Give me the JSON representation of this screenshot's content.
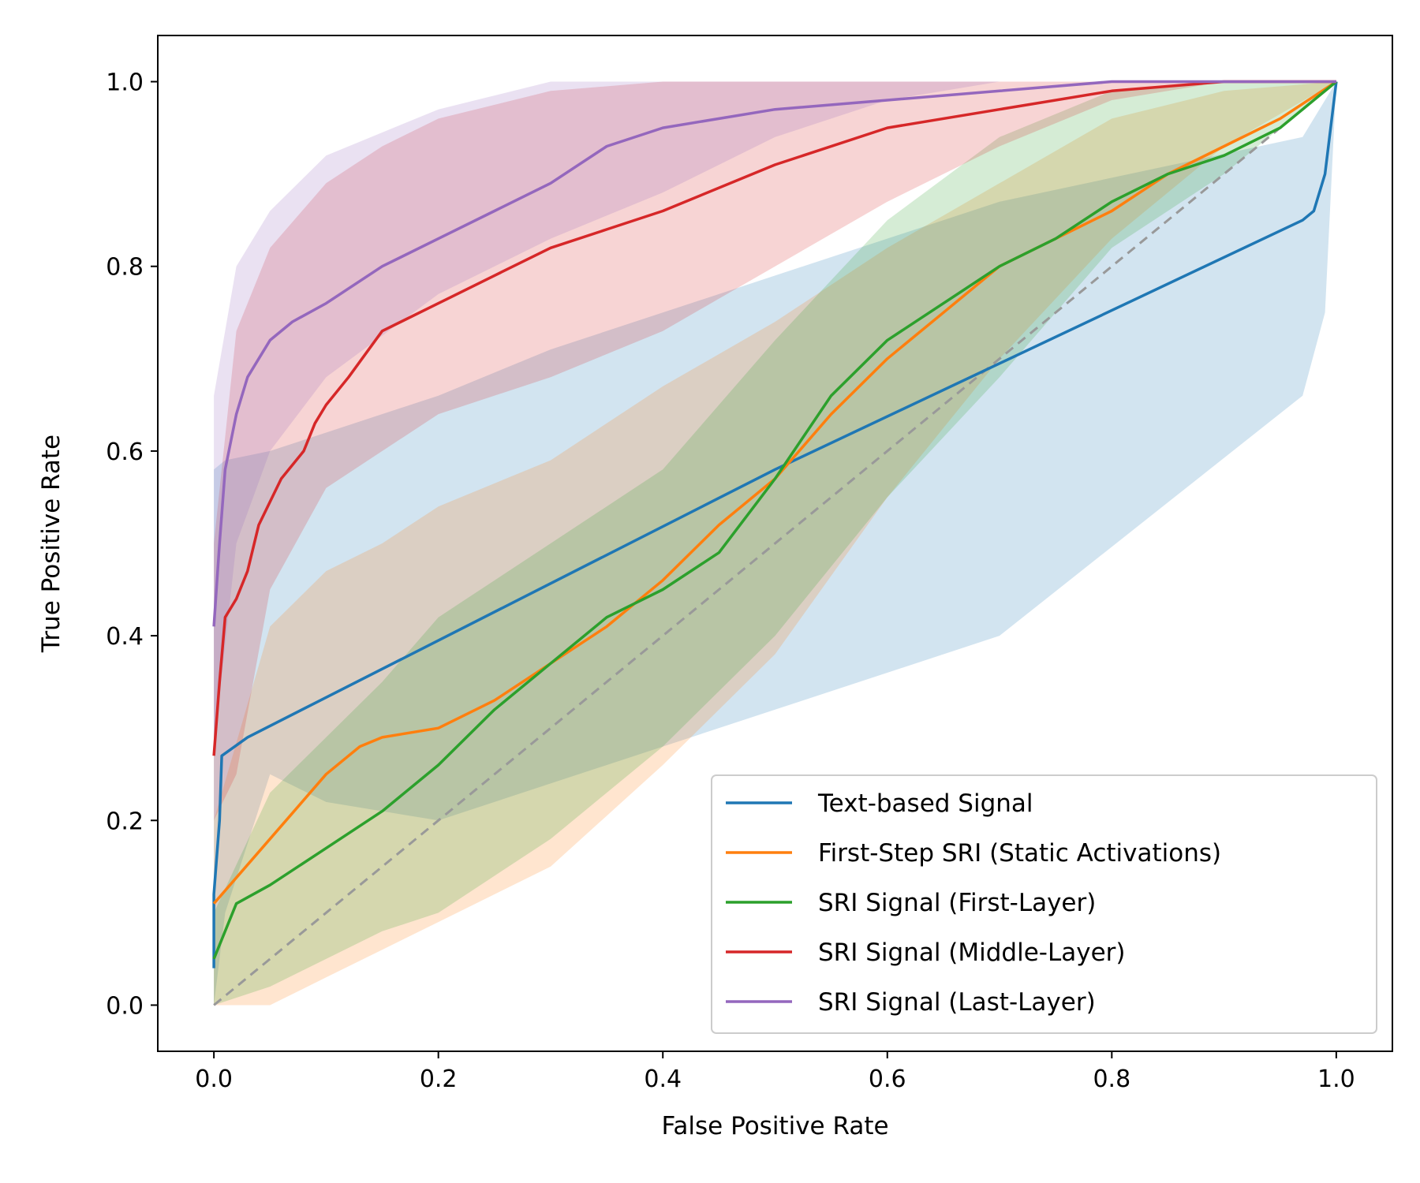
{
  "chart_data": {
    "type": "line",
    "title": "",
    "xlabel": "False Positive Rate",
    "ylabel": "True Positive Rate",
    "xlim": [
      -0.05,
      1.05
    ],
    "ylim": [
      -0.05,
      1.05
    ],
    "xticks": [
      0.0,
      0.2,
      0.4,
      0.6,
      0.8,
      1.0
    ],
    "yticks": [
      0.0,
      0.2,
      0.4,
      0.6,
      0.8,
      1.0
    ],
    "tick_labels_x": [
      "0.0",
      "0.2",
      "0.4",
      "0.6",
      "0.8",
      "1.0"
    ],
    "tick_labels_y": [
      "0.0",
      "0.2",
      "0.4",
      "0.6",
      "0.8",
      "1.0"
    ],
    "legend_position": "lower-right",
    "diagonal": {
      "x": [
        0,
        1
      ],
      "y": [
        0,
        1
      ],
      "color": "#999999",
      "style": "dashed"
    },
    "series": [
      {
        "name": "Text-based Signal",
        "color": "#1f77b4",
        "x": [
          0.0,
          0.0,
          0.005,
          0.007,
          0.03,
          0.5,
          0.97,
          0.98,
          0.99,
          1.0
        ],
        "y": [
          0.04,
          0.12,
          0.2,
          0.27,
          0.29,
          0.58,
          0.85,
          0.86,
          0.9,
          1.0
        ],
        "band_x": [
          0.0,
          0.0,
          0.01,
          0.05,
          0.1,
          0.2,
          0.3,
          0.5,
          0.7,
          0.97,
          0.99,
          1.0
        ],
        "band_lower": [
          0.0,
          0.0,
          0.1,
          0.25,
          0.22,
          0.2,
          0.24,
          0.32,
          0.4,
          0.66,
          0.75,
          1.0
        ],
        "band_upper": [
          0.12,
          0.58,
          0.59,
          0.6,
          0.62,
          0.66,
          0.71,
          0.79,
          0.87,
          0.94,
          0.98,
          1.0
        ]
      },
      {
        "name": "First-Step SRI (Static Activations)",
        "color": "#ff7f0e",
        "x": [
          0.0,
          0.05,
          0.1,
          0.13,
          0.15,
          0.2,
          0.25,
          0.3,
          0.35,
          0.4,
          0.45,
          0.5,
          0.55,
          0.6,
          0.65,
          0.7,
          0.75,
          0.8,
          0.85,
          0.9,
          0.95,
          1.0
        ],
        "y": [
          0.11,
          0.18,
          0.25,
          0.28,
          0.29,
          0.3,
          0.33,
          0.37,
          0.41,
          0.46,
          0.52,
          0.57,
          0.64,
          0.7,
          0.75,
          0.8,
          0.83,
          0.86,
          0.9,
          0.93,
          0.96,
          1.0
        ],
        "band_x": [
          0.0,
          0.05,
          0.1,
          0.15,
          0.2,
          0.3,
          0.4,
          0.5,
          0.6,
          0.7,
          0.8,
          0.9,
          1.0
        ],
        "band_lower": [
          0.0,
          0.0,
          0.03,
          0.06,
          0.09,
          0.15,
          0.26,
          0.38,
          0.55,
          0.7,
          0.83,
          0.93,
          1.0
        ],
        "band_upper": [
          0.2,
          0.41,
          0.47,
          0.5,
          0.54,
          0.59,
          0.67,
          0.74,
          0.82,
          0.89,
          0.96,
          0.99,
          1.0
        ]
      },
      {
        "name": "SRI Signal (First-Layer)",
        "color": "#2ca02c",
        "x": [
          0.0,
          0.02,
          0.05,
          0.1,
          0.15,
          0.2,
          0.25,
          0.3,
          0.35,
          0.4,
          0.45,
          0.5,
          0.55,
          0.6,
          0.65,
          0.7,
          0.75,
          0.8,
          0.85,
          0.9,
          0.95,
          1.0
        ],
        "y": [
          0.05,
          0.11,
          0.13,
          0.17,
          0.21,
          0.26,
          0.32,
          0.37,
          0.42,
          0.45,
          0.49,
          0.57,
          0.66,
          0.72,
          0.76,
          0.8,
          0.83,
          0.87,
          0.9,
          0.92,
          0.95,
          1.0
        ],
        "band_x": [
          0.0,
          0.05,
          0.1,
          0.15,
          0.2,
          0.3,
          0.4,
          0.5,
          0.6,
          0.7,
          0.8,
          0.9,
          1.0
        ],
        "band_lower": [
          0.0,
          0.02,
          0.05,
          0.08,
          0.1,
          0.18,
          0.28,
          0.4,
          0.55,
          0.68,
          0.82,
          0.9,
          1.0
        ],
        "band_upper": [
          0.1,
          0.23,
          0.29,
          0.35,
          0.42,
          0.5,
          0.58,
          0.72,
          0.85,
          0.94,
          0.99,
          1.0,
          1.0
        ]
      },
      {
        "name": "SRI Signal (Middle-Layer)",
        "color": "#d62728",
        "x": [
          0.0,
          0.005,
          0.01,
          0.02,
          0.03,
          0.04,
          0.06,
          0.08,
          0.09,
          0.1,
          0.12,
          0.15,
          0.2,
          0.25,
          0.3,
          0.35,
          0.4,
          0.5,
          0.6,
          0.7,
          0.8,
          0.9,
          1.0
        ],
        "y": [
          0.27,
          0.35,
          0.42,
          0.44,
          0.47,
          0.52,
          0.57,
          0.6,
          0.63,
          0.65,
          0.68,
          0.73,
          0.76,
          0.79,
          0.82,
          0.84,
          0.86,
          0.91,
          0.95,
          0.97,
          0.99,
          1.0,
          1.0
        ],
        "band_x": [
          0.0,
          0.02,
          0.05,
          0.1,
          0.15,
          0.2,
          0.3,
          0.4,
          0.5,
          0.6,
          0.7,
          0.8,
          0.9,
          1.0
        ],
        "band_lower": [
          0.2,
          0.25,
          0.45,
          0.56,
          0.6,
          0.64,
          0.68,
          0.73,
          0.8,
          0.87,
          0.93,
          0.98,
          1.0,
          1.0
        ],
        "band_upper": [
          0.5,
          0.73,
          0.82,
          0.89,
          0.93,
          0.96,
          0.99,
          1.0,
          1.0,
          1.0,
          1.0,
          1.0,
          1.0,
          1.0
        ]
      },
      {
        "name": "SRI Signal (Last-Layer)",
        "color": "#9467bd",
        "x": [
          0.0,
          0.005,
          0.01,
          0.015,
          0.02,
          0.03,
          0.04,
          0.05,
          0.07,
          0.1,
          0.15,
          0.2,
          0.25,
          0.3,
          0.35,
          0.4,
          0.5,
          0.6,
          0.7,
          0.8,
          0.9,
          1.0
        ],
        "y": [
          0.41,
          0.5,
          0.58,
          0.61,
          0.64,
          0.68,
          0.7,
          0.72,
          0.74,
          0.76,
          0.8,
          0.83,
          0.86,
          0.89,
          0.93,
          0.95,
          0.97,
          0.98,
          0.99,
          1.0,
          1.0,
          1.0
        ],
        "band_x": [
          0.0,
          0.02,
          0.05,
          0.1,
          0.2,
          0.3,
          0.4,
          0.5,
          0.6,
          0.7,
          0.8,
          1.0
        ],
        "band_lower": [
          0.28,
          0.5,
          0.6,
          0.68,
          0.77,
          0.83,
          0.88,
          0.94,
          0.98,
          1.0,
          1.0,
          1.0
        ],
        "band_upper": [
          0.66,
          0.8,
          0.86,
          0.92,
          0.97,
          1.0,
          1.0,
          1.0,
          1.0,
          1.0,
          1.0,
          1.0
        ]
      }
    ]
  }
}
